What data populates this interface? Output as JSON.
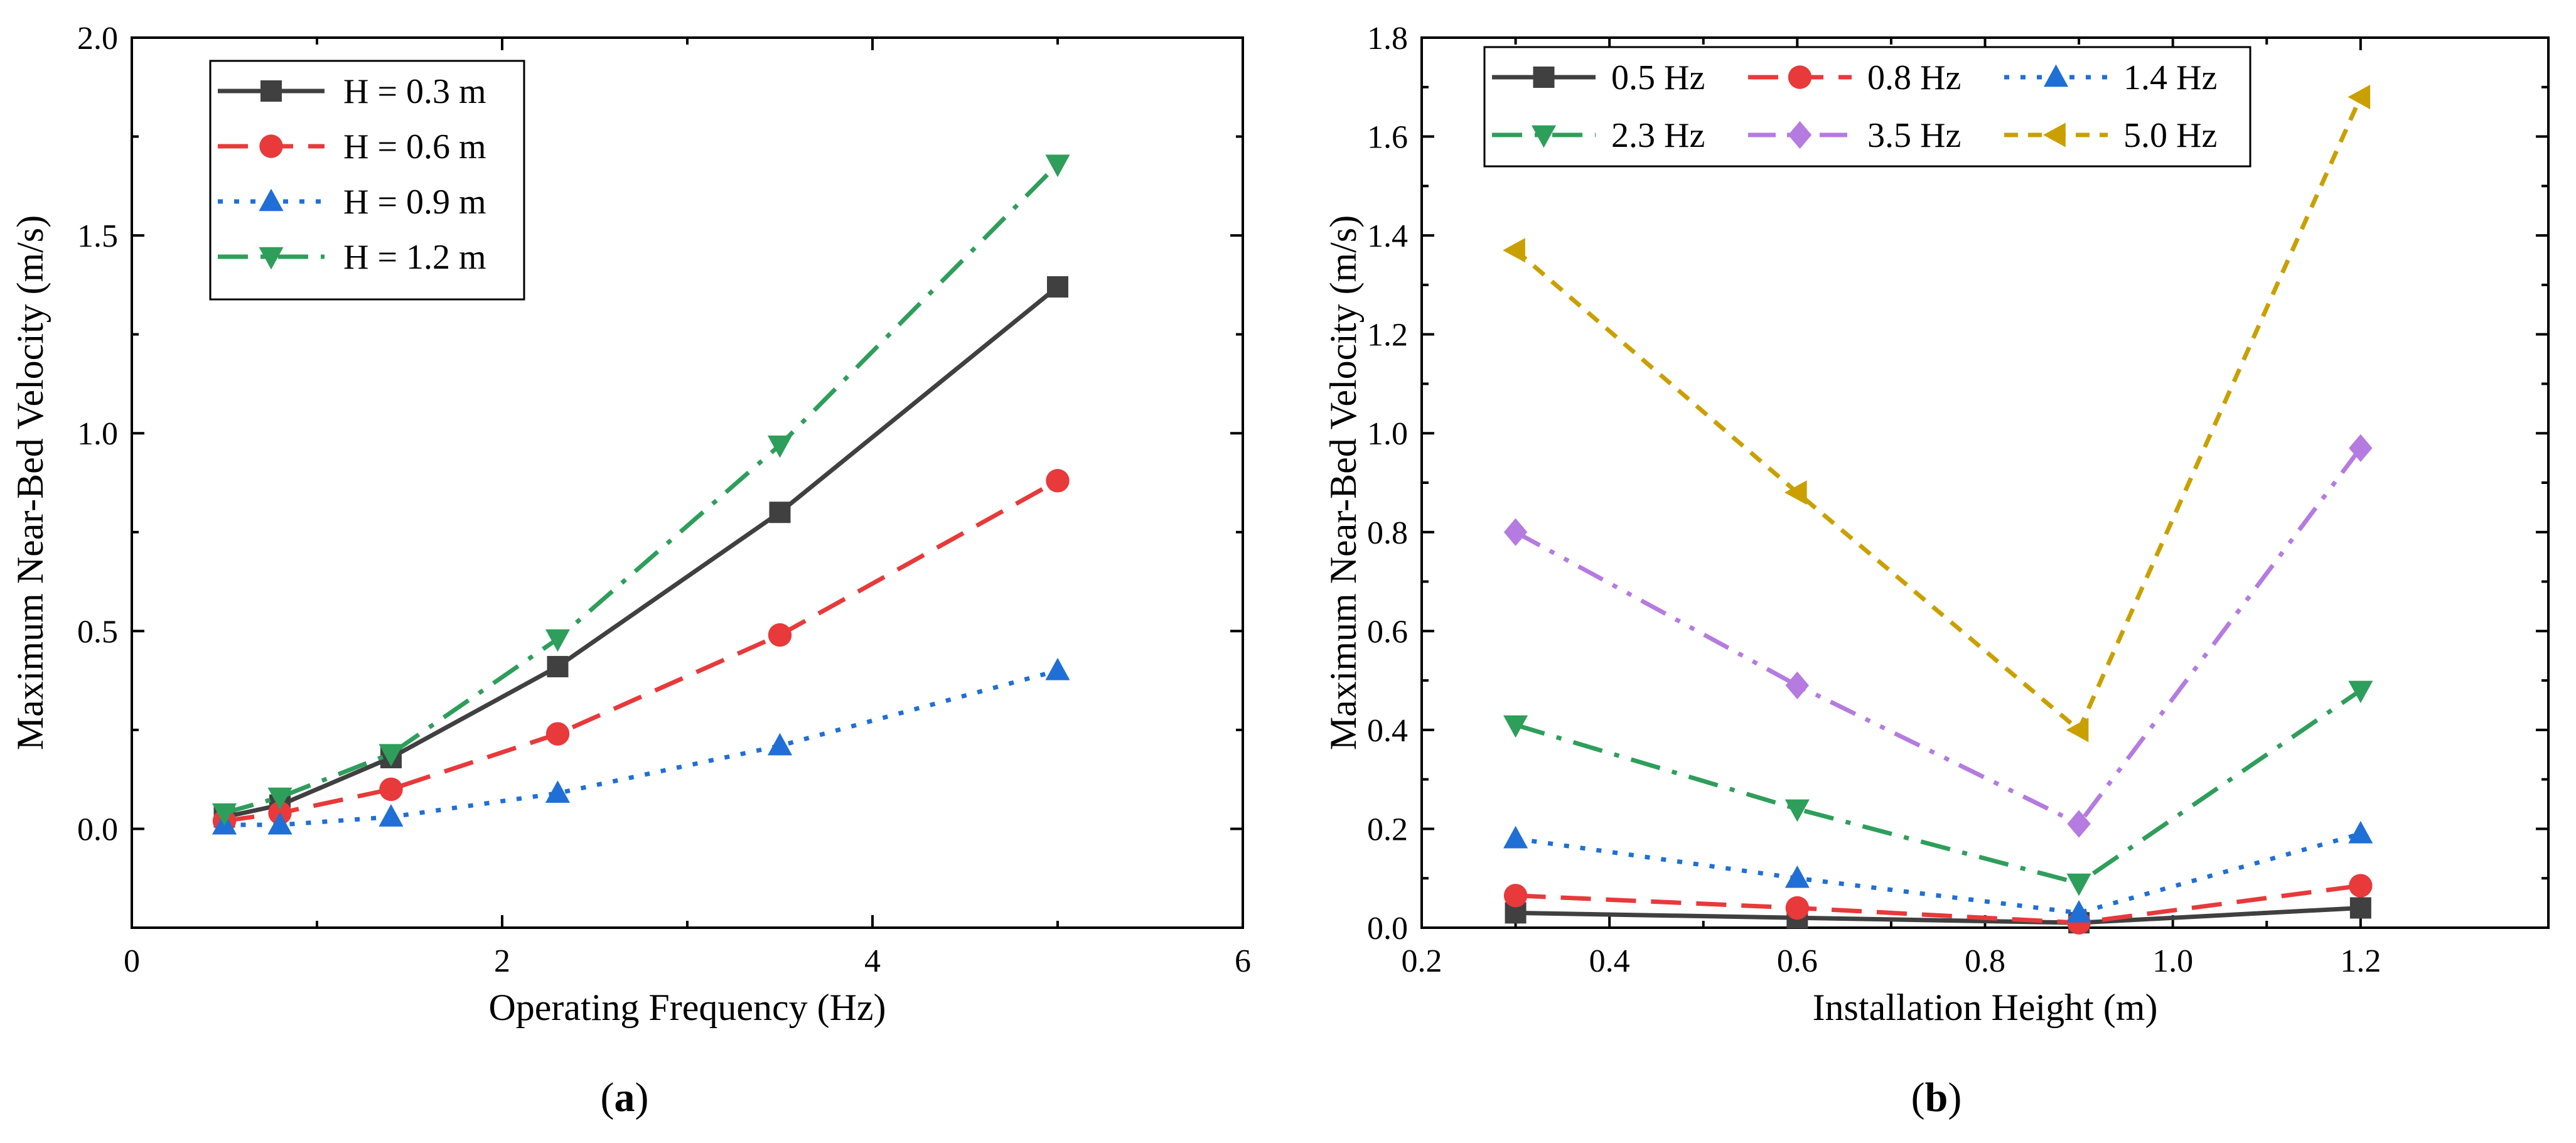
{
  "chart_data": [
    {
      "panel": "a",
      "caption_open": "(",
      "caption_letter": "a",
      "caption_close": ")",
      "type": "line",
      "title": "",
      "xlabel": "Operating Frequency (Hz)",
      "ylabel": "Maximum Near-Bed Velocity (m/s)",
      "xlim": [
        0,
        6
      ],
      "ylim": [
        -0.25,
        2.0
      ],
      "xticks": [
        0,
        2,
        4,
        6
      ],
      "xticklabels": [
        "0",
        "2",
        "4",
        "6"
      ],
      "yticks": [
        0.0,
        0.5,
        1.0,
        1.5,
        2.0
      ],
      "yticklabels": [
        "0.0",
        "0.5",
        "1.0",
        "1.5",
        "2.0"
      ],
      "legend_position": "top-left",
      "x": [
        0.5,
        0.8,
        1.4,
        2.3,
        3.5,
        5.0
      ],
      "series": [
        {
          "name": "H = 0.3 m",
          "color": "#404040",
          "marker": "square",
          "dash": "solid",
          "values": [
            0.03,
            0.06,
            0.18,
            0.41,
            0.8,
            1.37
          ]
        },
        {
          "name": "H = 0.6 m",
          "color": "#e8393b",
          "marker": "circle",
          "dash": "dash",
          "values": [
            0.02,
            0.04,
            0.1,
            0.24,
            0.49,
            0.88
          ]
        },
        {
          "name": "H = 0.9 m",
          "color": "#1f6fd6",
          "marker": "triangle-up",
          "dash": "dot",
          "values": [
            0.01,
            0.01,
            0.03,
            0.09,
            0.21,
            0.4
          ]
        },
        {
          "name": "H = 1.2 m",
          "color": "#2e9e5b",
          "marker": "triangle-down",
          "dash": "dashdot",
          "values": [
            0.04,
            0.08,
            0.19,
            0.48,
            0.97,
            1.68
          ]
        }
      ]
    },
    {
      "panel": "b",
      "caption_open": "(",
      "caption_letter": "b",
      "caption_close": ")",
      "type": "line",
      "title": "",
      "xlabel": "Installation Height (m)",
      "ylabel": "Maximum Near-Bed Velocity (m/s)",
      "xlim": [
        0.2,
        1.4
      ],
      "ylim": [
        0.0,
        1.8
      ],
      "xticks": [
        0.2,
        0.4,
        0.6,
        0.8,
        1.0,
        1.2
      ],
      "xticklabels": [
        "0.2",
        "0.4",
        "0.6",
        "0.8",
        "1.0",
        "1.2"
      ],
      "yticks": [
        0.0,
        0.2,
        0.4,
        0.6,
        0.8,
        1.0,
        1.2,
        1.4,
        1.6,
        1.8
      ],
      "yticklabels": [
        "0.0",
        "0.2",
        "0.4",
        "0.6",
        "0.8",
        "1.0",
        "1.2",
        "1.4",
        "1.6",
        "1.8"
      ],
      "legend_position": "top-left",
      "x": [
        0.3,
        0.6,
        0.9,
        1.2
      ],
      "series": [
        {
          "name": "0.5 Hz",
          "color": "#404040",
          "marker": "square",
          "dash": "solid",
          "values": [
            0.03,
            0.02,
            0.01,
            0.04
          ]
        },
        {
          "name": "0.8 Hz",
          "color": "#e8393b",
          "marker": "circle",
          "dash": "dash",
          "values": [
            0.065,
            0.04,
            0.01,
            0.085
          ]
        },
        {
          "name": "1.4 Hz",
          "color": "#1f6fd6",
          "marker": "triangle-up",
          "dash": "dot",
          "values": [
            0.18,
            0.1,
            0.03,
            0.19
          ]
        },
        {
          "name": "2.3 Hz",
          "color": "#2e9e5b",
          "marker": "triangle-down",
          "dash": "dashdot",
          "values": [
            0.41,
            0.24,
            0.09,
            0.48
          ]
        },
        {
          "name": "3.5 Hz",
          "color": "#b57be0",
          "marker": "diamond",
          "dash": "dashdotdot",
          "values": [
            0.8,
            0.49,
            0.21,
            0.97
          ]
        },
        {
          "name": "5.0 Hz",
          "color": "#c9a000",
          "marker": "triangle-left",
          "dash": "shortdash",
          "values": [
            1.37,
            0.88,
            0.4,
            1.68
          ]
        }
      ]
    }
  ]
}
